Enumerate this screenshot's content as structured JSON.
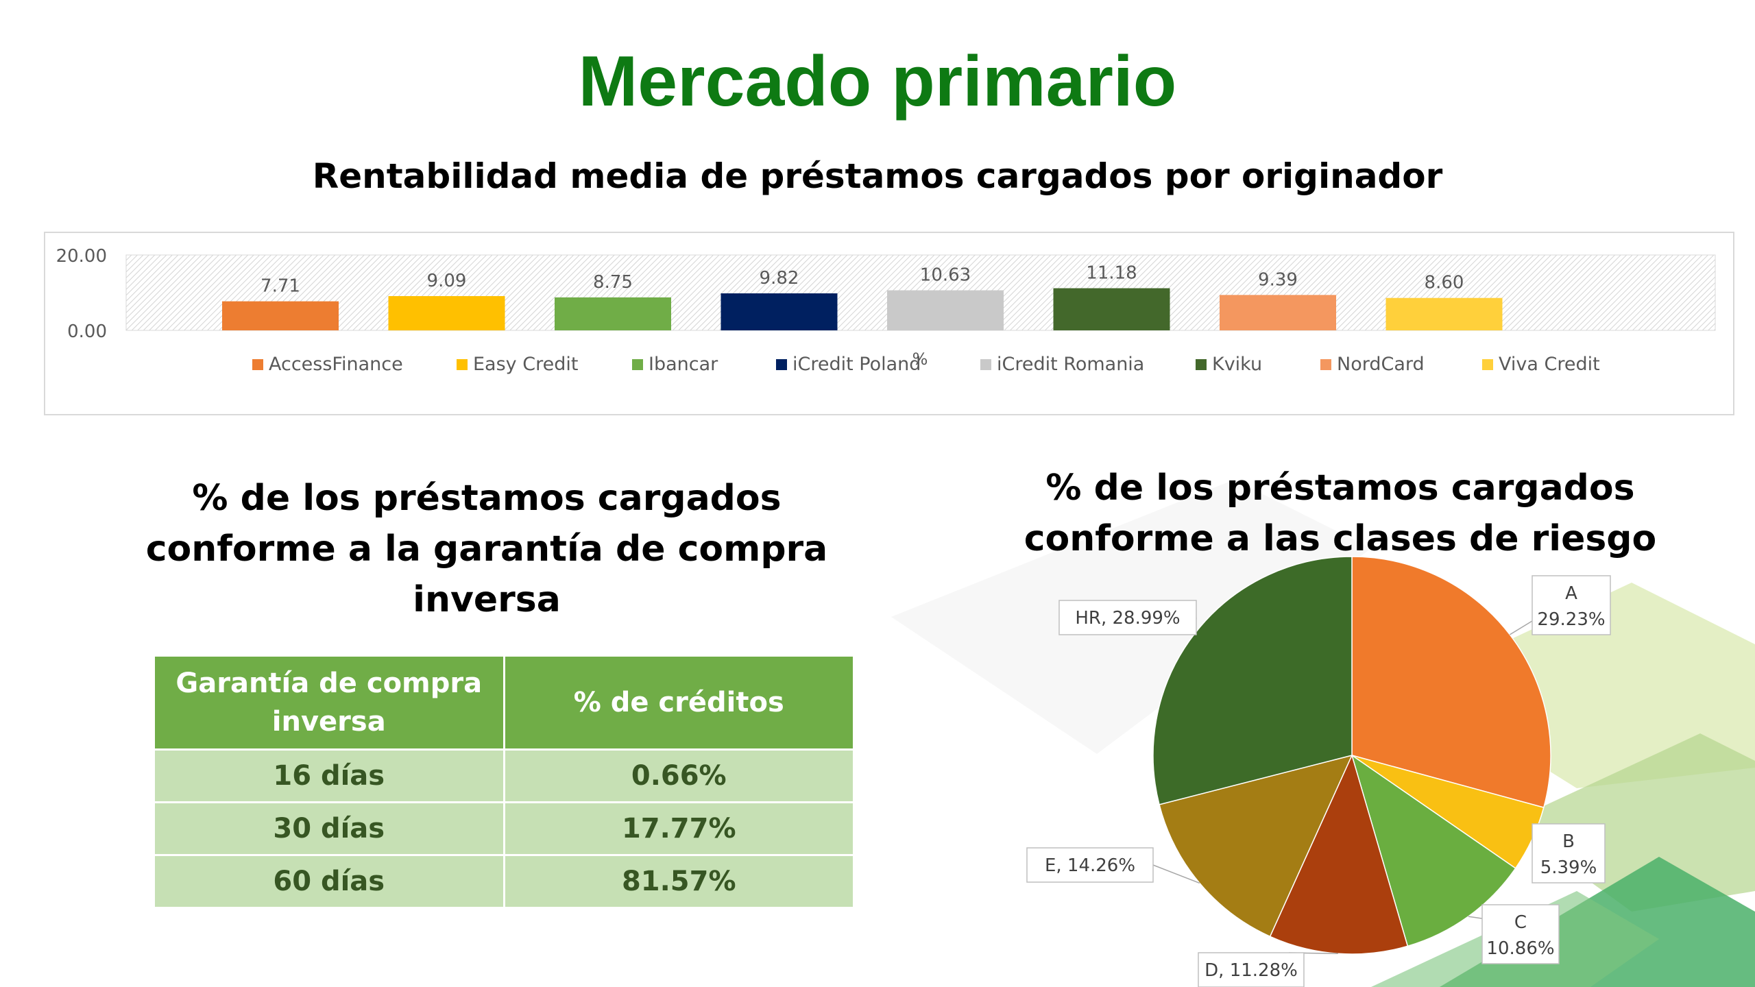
{
  "page": {
    "title": "Mercado primario",
    "bar_section_title": "Rentabilidad media de préstamos cargados por originador",
    "table_section_title": "% de los préstamos cargados conforme a la garantía de compra inversa",
    "pie_section_title": "% de los préstamos cargados conforme a las clases de riesgo"
  },
  "colors": {
    "title_green": "#0e7a13",
    "table_header": "#70ad47",
    "table_cell": "#c6e0b4",
    "table_text": "#375623"
  },
  "table": {
    "headers": [
      "Garantía de compra inversa",
      "% de créditos"
    ],
    "rows": [
      [
        "16 días",
        "0.66%"
      ],
      [
        "30 días",
        "17.77%"
      ],
      [
        "60 días",
        "81.57%"
      ]
    ]
  },
  "chart_data": [
    {
      "type": "bar",
      "title": "Rentabilidad media de préstamos cargados por originador",
      "xlabel": "%",
      "ylabel": "",
      "ylim": [
        0,
        20
      ],
      "yticks": [
        "0.00",
        "20.00"
      ],
      "legend_position": "bottom",
      "grid": false,
      "series": [
        {
          "name": "AccessFinance",
          "value": 7.71,
          "label": "7.71",
          "color": "#ed7d31"
        },
        {
          "name": "Easy Credit",
          "value": 9.09,
          "label": "9.09",
          "color": "#ffc000"
        },
        {
          "name": "Ibancar",
          "value": 8.75,
          "label": "8.75",
          "color": "#70ad47"
        },
        {
          "name": "iCredit Poland",
          "value": 9.82,
          "label": "9.82",
          "color": "#002060"
        },
        {
          "name": "iCredit Romania",
          "value": 10.63,
          "label": "10.63",
          "color": "#c9c9c9"
        },
        {
          "name": "Kviku",
          "value": 11.18,
          "label": "11.18",
          "color": "#43682b"
        },
        {
          "name": "NordCard",
          "value": 9.39,
          "label": "9.39",
          "color": "#f4975f"
        },
        {
          "name": "Viva Credit",
          "value": 8.6,
          "label": "8.60",
          "color": "#ffd03b"
        }
      ]
    },
    {
      "type": "pie",
      "title": "% de los préstamos cargados conforme a las clases de riesgo",
      "slices": [
        {
          "name": "A",
          "value": 29.23,
          "label": "29.23%",
          "color": "#f07a2b"
        },
        {
          "name": "B",
          "value": 5.39,
          "label": "5.39%",
          "color": "#f9c013"
        },
        {
          "name": "C",
          "value": 10.86,
          "label": "10.86%",
          "color": "#6aae40"
        },
        {
          "name": "D",
          "value": 11.28,
          "label": "11.28%",
          "color": "#ab3f0d"
        },
        {
          "name": "E",
          "value": 14.26,
          "label": "14.26%",
          "color": "#a47d14"
        },
        {
          "name": "HR",
          "value": 28.99,
          "label": "28.99%",
          "color": "#3d6b28"
        }
      ]
    }
  ]
}
